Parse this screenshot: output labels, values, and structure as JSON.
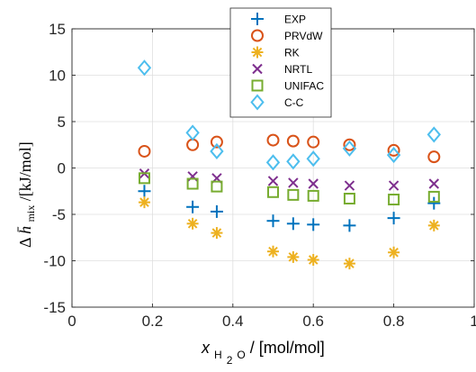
{
  "chart_data": {
    "type": "scatter",
    "xlim": [
      0,
      1
    ],
    "ylim": [
      -15,
      15
    ],
    "xticks": [
      0,
      0.2,
      0.4,
      0.6,
      0.8,
      1
    ],
    "xtick_labels": [
      "0",
      "0.2",
      "0.4",
      "0.6",
      "0.8",
      "1"
    ],
    "yticks": [
      -15,
      -10,
      -5,
      0,
      5,
      10,
      15
    ],
    "ytick_labels": [
      "-15",
      "-10",
      "-5",
      "0",
      "5",
      "10",
      "15"
    ],
    "grid": true,
    "legend_position": "top-center",
    "xlabel": {
      "italic": "x",
      "sub": "H",
      "subsub": "2",
      "sub_tail": "O",
      "rest": " / [mol/mol]"
    },
    "ylabel": {
      "delta": "Δ",
      "h": "h̄",
      "sub": "mix",
      "rest": "/[kJ/mol]"
    },
    "series": [
      {
        "name": "EXP",
        "marker": "plus",
        "color": "#0072BD",
        "x": [
          0.18,
          0.3,
          0.36,
          0.5,
          0.55,
          0.6,
          0.69,
          0.8,
          0.9
        ],
        "y": [
          -2.5,
          -4.2,
          -4.7,
          -5.7,
          -6.0,
          -6.1,
          -6.2,
          -5.4,
          -3.8
        ]
      },
      {
        "name": "PRVdW",
        "marker": "circle",
        "color": "#D95319",
        "x": [
          0.18,
          0.3,
          0.36,
          0.5,
          0.55,
          0.6,
          0.69,
          0.8,
          0.9
        ],
        "y": [
          1.8,
          2.5,
          2.8,
          3.0,
          2.9,
          2.8,
          2.5,
          1.9,
          1.2
        ]
      },
      {
        "name": "RK",
        "marker": "asterisk",
        "color": "#EDB120",
        "x": [
          0.18,
          0.3,
          0.36,
          0.5,
          0.55,
          0.6,
          0.69,
          0.8,
          0.9
        ],
        "y": [
          -3.7,
          -6.0,
          -7.0,
          -9.0,
          -9.6,
          -9.9,
          -10.3,
          -9.1,
          -6.2
        ]
      },
      {
        "name": "NRTL",
        "marker": "x",
        "color": "#7E2F8E",
        "x": [
          0.18,
          0.3,
          0.36,
          0.5,
          0.55,
          0.6,
          0.69,
          0.8,
          0.9
        ],
        "y": [
          -0.6,
          -0.9,
          -1.1,
          -1.4,
          -1.6,
          -1.7,
          -1.9,
          -1.9,
          -1.7
        ]
      },
      {
        "name": "UNIFAC",
        "marker": "square",
        "color": "#77AC30",
        "x": [
          0.18,
          0.3,
          0.36,
          0.5,
          0.55,
          0.6,
          0.69,
          0.8,
          0.9
        ],
        "y": [
          -1.1,
          -1.7,
          -2.0,
          -2.6,
          -2.9,
          -3.0,
          -3.3,
          -3.4,
          -3.1
        ]
      },
      {
        "name": "C-C",
        "marker": "diamond",
        "color": "#4DBEEE",
        "x": [
          0.18,
          0.3,
          0.36,
          0.5,
          0.55,
          0.6,
          0.69,
          0.8,
          0.9
        ],
        "y": [
          10.8,
          3.8,
          1.8,
          0.6,
          0.7,
          1.0,
          2.1,
          1.4,
          3.6
        ]
      }
    ]
  }
}
